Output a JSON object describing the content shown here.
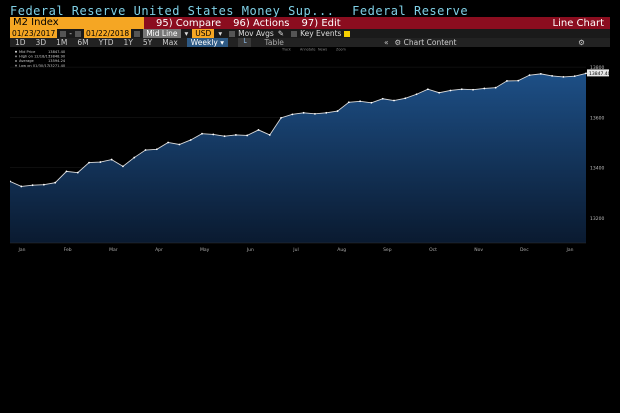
{
  "window": {
    "title_left": "Federal Reserve United States Money Sup...",
    "title_right": "Federal Reserve"
  },
  "commandbar": {
    "index": "M2 Index",
    "compare": "95) Compare",
    "actions": "96) Actions",
    "edit": "97) Edit",
    "view": "Line Chart"
  },
  "controls": {
    "start_date": "01/23/2017",
    "date_sep": "-",
    "end_date": "01/22/2018",
    "line_type": "Mid Line",
    "currency": "USD",
    "mov_avgs": "Mov Avgs",
    "key_events": "Key Events"
  },
  "ranges": {
    "items": [
      "1D",
      "3D",
      "1M",
      "6M",
      "YTD",
      "1Y",
      "5Y",
      "Max"
    ],
    "frequency": "Weekly",
    "table": "Table",
    "chart_content": "Chart Content"
  },
  "chart_data": {
    "type": "area",
    "toolbar_items": [
      "Track",
      "Annotate",
      "News",
      "Zoom"
    ],
    "legend": [
      {
        "label": "Mid Price",
        "value": "13847.40"
      },
      {
        "label": "High on 12/18/17",
        "value": "13848.90"
      },
      {
        "label": "Average",
        "value": "13594.24"
      },
      {
        "label": "Low on 01/30/17",
        "value": "13271.40"
      }
    ],
    "last_value_label": "13847.40",
    "x_labels": [
      "Jan",
      "Feb",
      "Mar",
      "Apr",
      "May",
      "Jun",
      "Jul",
      "Aug",
      "Sep",
      "Oct",
      "Nov",
      "Dec",
      "Jan"
    ],
    "y_ticks": [
      13200,
      13400,
      13600,
      13800
    ],
    "ylim": [
      13100,
      13880
    ],
    "y_tick_labels": [
      "13200",
      "13400",
      "13600",
      "13800",
      "13900"
    ],
    "y_tick_values": [
      13200,
      13400,
      13600,
      13800,
      13900
    ],
    "values": [
      13345,
      13325,
      13330,
      13332,
      13340,
      13385,
      13380,
      13420,
      13422,
      13432,
      13405,
      13440,
      13470,
      13473,
      13500,
      13492,
      13510,
      13535,
      13532,
      13525,
      13530,
      13528,
      13550,
      13530,
      13598,
      13612,
      13618,
      13614,
      13618,
      13625,
      13660,
      13664,
      13658,
      13674,
      13667,
      13676,
      13692,
      13712,
      13698,
      13707,
      13712,
      13710,
      13715,
      13718,
      13745,
      13746,
      13768,
      13773,
      13765,
      13761,
      13764,
      13775
    ]
  },
  "colors": {
    "accent": "#f5a623",
    "cmdbar": "#8b0d1f",
    "title": "#7fd0e6",
    "area_top": "#1d4f86",
    "area_bottom": "#0a1a30"
  }
}
